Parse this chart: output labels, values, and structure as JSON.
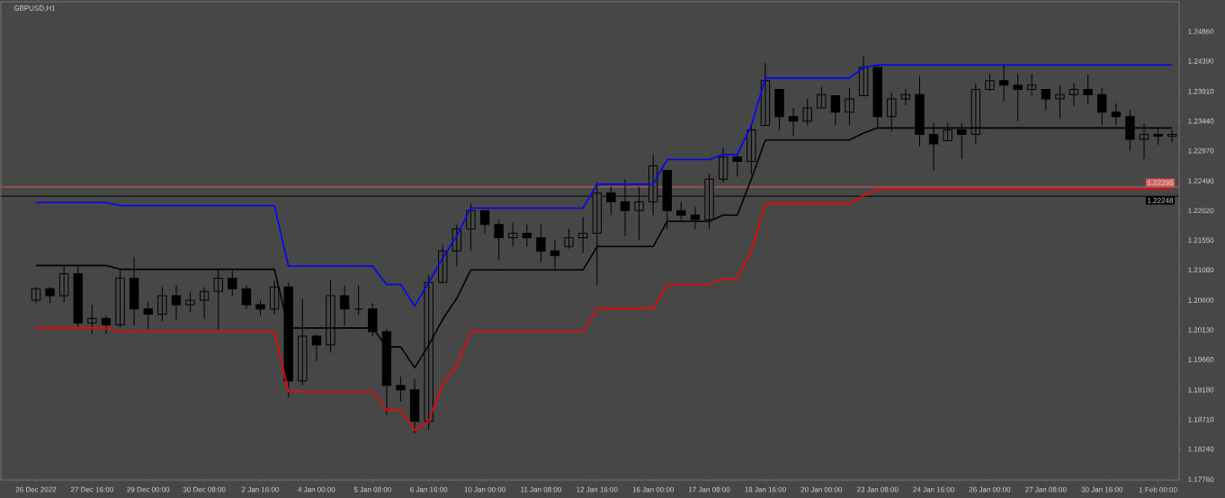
{
  "chart_data": {
    "type": "candlestick",
    "title": "GBPUSD,H1",
    "color": "#000000",
    "categories": [
      "26 Dec 2022",
      null,
      null,
      null,
      "27 Dec 16:00",
      null,
      null,
      null,
      "29 Dec 00:00",
      null,
      null,
      null,
      "30 Dec 08:00",
      null,
      null,
      null,
      "2 Jan 16:00",
      null,
      null,
      null,
      "4 Jan 00:00",
      null,
      null,
      null,
      "5 Jan 08:00",
      null,
      null,
      null,
      "6 Jan 16:00",
      null,
      null,
      null,
      "10 Jan 00:00",
      null,
      null,
      null,
      "11 Jan 08:00",
      null,
      null,
      null,
      "12 Jan 16:00",
      null,
      null,
      null,
      "16 Jan 00:00",
      null,
      null,
      null,
      "17 Jan 08:00",
      null,
      null,
      null,
      "18 Jan 16:00",
      null,
      null,
      null,
      "20 Jan 00:00",
      null,
      null,
      null,
      "23 Jan 08:00",
      null,
      null,
      null,
      "24 Jan 16:00",
      null,
      null,
      null,
      "26 Jan 00:00",
      null,
      null,
      null,
      "27 Jan 08:00",
      null,
      null,
      null,
      "30 Jan 16:00",
      null,
      null,
      null,
      "1 Feb 00:00",
      null
    ],
    "ohlc": [
      [
        1.206,
        1.2081,
        1.2055,
        1.2078
      ],
      [
        1.2078,
        1.2081,
        1.2055,
        1.2067
      ],
      [
        1.2067,
        1.2114,
        1.2057,
        1.2102
      ],
      [
        1.2102,
        1.2114,
        1.2014,
        1.2024
      ],
      [
        1.2024,
        1.2053,
        1.2007,
        1.2031
      ],
      [
        1.2031,
        1.2036,
        1.2007,
        1.2021
      ],
      [
        1.2021,
        1.2107,
        1.2017,
        1.2095
      ],
      [
        1.2095,
        1.2128,
        1.202,
        1.2046
      ],
      [
        1.2046,
        1.2057,
        1.2014,
        1.2038
      ],
      [
        1.2038,
        1.2081,
        1.2027,
        1.2067
      ],
      [
        1.2067,
        1.2084,
        1.2028,
        1.2053
      ],
      [
        1.2053,
        1.2074,
        1.2041,
        1.206
      ],
      [
        1.206,
        1.2081,
        1.2031,
        1.2074
      ],
      [
        1.2074,
        1.2109,
        1.2014,
        1.2095
      ],
      [
        1.2095,
        1.2107,
        1.2067,
        1.2078
      ],
      [
        1.2078,
        1.2084,
        1.2046,
        1.2053
      ],
      [
        1.2053,
        1.206,
        1.2036,
        1.2046
      ],
      [
        1.2046,
        1.2091,
        1.2038,
        1.2081
      ],
      [
        1.2081,
        1.2088,
        1.1906,
        1.1932
      ],
      [
        1.1932,
        1.2062,
        1.1925,
        1.2003
      ],
      [
        1.2003,
        1.2006,
        1.1963,
        1.1989
      ],
      [
        1.1989,
        1.2092,
        1.1977,
        1.2067
      ],
      [
        1.2067,
        1.2084,
        1.202,
        1.2046
      ],
      [
        1.2046,
        1.2084,
        1.2036,
        1.2046
      ],
      [
        1.2046,
        1.2055,
        1.2003,
        1.201
      ],
      [
        1.201,
        1.2014,
        1.1878,
        1.1925
      ],
      [
        1.1925,
        1.1939,
        1.1899,
        1.1918
      ],
      [
        1.1918,
        1.1935,
        1.1849,
        1.1868
      ],
      [
        1.1868,
        1.21,
        1.1854,
        1.2088
      ],
      [
        1.2088,
        1.2148,
        1.2088,
        1.2138
      ],
      [
        1.2138,
        1.218,
        1.2114,
        1.2173
      ],
      [
        1.2173,
        1.2213,
        1.2138,
        1.2202
      ],
      [
        1.2202,
        1.2202,
        1.2166,
        1.218
      ],
      [
        1.218,
        1.2188,
        1.2124,
        1.2159
      ],
      [
        1.2159,
        1.2183,
        1.2145,
        1.2166
      ],
      [
        1.2166,
        1.218,
        1.2145,
        1.2159
      ],
      [
        1.2159,
        1.218,
        1.2121,
        1.2138
      ],
      [
        1.2138,
        1.2156,
        1.2109,
        1.2131
      ],
      [
        1.2145,
        1.2173,
        1.2142,
        1.2159
      ],
      [
        1.2159,
        1.2192,
        1.2135,
        1.2166
      ],
      [
        1.2166,
        1.2247,
        1.2084,
        1.223
      ],
      [
        1.223,
        1.224,
        1.2195,
        1.2216
      ],
      [
        1.2216,
        1.2252,
        1.2162,
        1.2202
      ],
      [
        1.2202,
        1.224,
        1.2155,
        1.2216
      ],
      [
        1.2216,
        1.229,
        1.2195,
        1.2273
      ],
      [
        1.2266,
        1.2266,
        1.2173,
        1.2202
      ],
      [
        1.2202,
        1.2216,
        1.2188,
        1.2195
      ],
      [
        1.2195,
        1.2209,
        1.2173,
        1.2188
      ],
      [
        1.2188,
        1.2261,
        1.2173,
        1.2252
      ],
      [
        1.2252,
        1.2301,
        1.2247,
        1.2287
      ],
      [
        1.2287,
        1.2291,
        1.2256,
        1.228
      ],
      [
        1.228,
        1.2337,
        1.2259,
        1.233
      ],
      [
        1.2337,
        1.2436,
        1.2337,
        1.2408
      ],
      [
        1.2394,
        1.2394,
        1.233,
        1.2351
      ],
      [
        1.2351,
        1.2365,
        1.232,
        1.2344
      ],
      [
        1.2344,
        1.2379,
        1.2337,
        1.2365
      ],
      [
        1.2365,
        1.2398,
        1.2365,
        1.2386
      ],
      [
        1.2384,
        1.2384,
        1.2337,
        1.2358
      ],
      [
        1.2358,
        1.2396,
        1.2337,
        1.2379
      ],
      [
        1.2384,
        1.2448,
        1.2384,
        1.2429
      ],
      [
        1.2429,
        1.2432,
        1.2332,
        1.2351
      ],
      [
        1.2351,
        1.2389,
        1.2327,
        1.2379
      ],
      [
        1.2379,
        1.2394,
        1.2369,
        1.2386
      ],
      [
        1.2386,
        1.2415,
        1.2304,
        1.2323
      ],
      [
        1.2323,
        1.2341,
        1.2266,
        1.2308
      ],
      [
        1.2313,
        1.2341,
        1.2313,
        1.233
      ],
      [
        1.233,
        1.2341,
        1.2284,
        1.2323
      ],
      [
        1.2323,
        1.2404,
        1.2308,
        1.2394
      ],
      [
        1.2394,
        1.2419,
        1.2391,
        1.2408
      ],
      [
        1.2408,
        1.2432,
        1.2375,
        1.2401
      ],
      [
        1.2401,
        1.2419,
        1.2344,
        1.2394
      ],
      [
        1.2394,
        1.2419,
        1.2384,
        1.2401
      ],
      [
        1.2394,
        1.2394,
        1.2361,
        1.2379
      ],
      [
        1.2379,
        1.2401,
        1.2348,
        1.2386
      ],
      [
        1.2386,
        1.2404,
        1.2368,
        1.2394
      ],
      [
        1.2394,
        1.2418,
        1.2372,
        1.2386
      ],
      [
        1.2386,
        1.2396,
        1.2337,
        1.2358
      ],
      [
        1.2358,
        1.2372,
        1.2337,
        1.2351
      ],
      [
        1.2351,
        1.2362,
        1.2297,
        1.2315
      ],
      [
        1.2315,
        1.234,
        1.2284,
        1.2323
      ],
      [
        1.2323,
        1.2332,
        1.2306,
        1.232
      ],
      [
        1.232,
        1.233,
        1.2311,
        1.2323
      ]
    ],
    "series": [
      {
        "type": "line",
        "color": "#0000ff",
        "values": [
          1.2215,
          1.2215,
          1.2215,
          1.2215,
          1.2215,
          1.2215,
          1.221,
          1.221,
          1.221,
          1.221,
          1.221,
          1.221,
          1.221,
          1.221,
          1.221,
          1.221,
          1.221,
          1.221,
          1.2114,
          1.2114,
          1.2114,
          1.2114,
          1.2114,
          1.2114,
          1.2114,
          1.2085,
          1.2085,
          1.2051,
          1.2088,
          1.2127,
          1.2162,
          1.2206,
          1.2206,
          1.2206,
          1.2206,
          1.2206,
          1.2206,
          1.2206,
          1.2206,
          1.2206,
          1.2244,
          1.2244,
          1.2244,
          1.2244,
          1.2244,
          1.2283,
          1.2283,
          1.2283,
          1.2283,
          1.2291,
          1.2291,
          1.2337,
          1.2412,
          1.2412,
          1.2412,
          1.2412,
          1.2412,
          1.2412,
          1.2412,
          1.2429,
          1.2433,
          1.2433,
          1.2433,
          1.2433,
          1.2433,
          1.2433,
          1.2433,
          1.2433,
          1.2433,
          1.2433,
          1.2433,
          1.2433,
          1.2433,
          1.2433,
          1.2433,
          1.2433,
          1.2433,
          1.2433,
          1.2433,
          1.2433,
          1.2433,
          1.2433
        ]
      },
      {
        "type": "line",
        "color": "#000000",
        "values": [
          1.2115,
          1.2115,
          1.2115,
          1.2115,
          1.2115,
          1.2115,
          1.2109,
          1.2109,
          1.2109,
          1.2109,
          1.2109,
          1.2109,
          1.2109,
          1.2109,
          1.2109,
          1.2109,
          1.2109,
          1.2109,
          1.2016,
          1.2016,
          1.2016,
          1.2016,
          1.2016,
          1.2016,
          1.2016,
          1.1986,
          1.1986,
          1.1953,
          1.1989,
          1.203,
          1.2063,
          1.2108,
          1.2108,
          1.2108,
          1.2108,
          1.2108,
          1.2108,
          1.2108,
          1.2108,
          1.2108,
          1.2145,
          1.2145,
          1.2145,
          1.2145,
          1.2145,
          1.2185,
          1.2185,
          1.2185,
          1.2185,
          1.2195,
          1.2195,
          1.2252,
          1.2314,
          1.2314,
          1.2314,
          1.2314,
          1.2314,
          1.2314,
          1.2314,
          1.2325,
          1.2333,
          1.2333,
          1.2333,
          1.2333,
          1.2333,
          1.2333,
          1.2333,
          1.2333,
          1.2333,
          1.2333,
          1.2333,
          1.2333,
          1.2333,
          1.2333,
          1.2333,
          1.2333,
          1.2333,
          1.2333,
          1.2333,
          1.2333,
          1.2333,
          1.2333
        ]
      },
      {
        "type": "line",
        "color": "#ff0000",
        "values": [
          1.2016,
          1.2016,
          1.2016,
          1.2016,
          1.2016,
          1.2016,
          1.201,
          1.201,
          1.201,
          1.201,
          1.201,
          1.201,
          1.201,
          1.201,
          1.201,
          1.201,
          1.201,
          1.201,
          1.1915,
          1.1915,
          1.1915,
          1.1915,
          1.1915,
          1.1915,
          1.1915,
          1.1886,
          1.1886,
          1.1854,
          1.1868,
          1.1928,
          1.1956,
          1.201,
          1.201,
          1.201,
          1.201,
          1.201,
          1.201,
          1.201,
          1.201,
          1.201,
          1.2047,
          1.2047,
          1.2047,
          1.2047,
          1.2047,
          1.2085,
          1.2085,
          1.2085,
          1.2085,
          1.2094,
          1.2094,
          1.2138,
          1.2213,
          1.2213,
          1.2213,
          1.2213,
          1.2213,
          1.2213,
          1.2213,
          1.2226,
          1.2236,
          1.2236,
          1.2236,
          1.2236,
          1.2236,
          1.2236,
          1.2236,
          1.2236,
          1.2236,
          1.2236,
          1.2236,
          1.2236,
          1.2236,
          1.2236,
          1.2236,
          1.2236,
          1.2236,
          1.2236,
          1.2236,
          1.2236,
          1.2236,
          1.2236
        ]
      }
    ],
    "ref_lines": [
      {
        "axis": "y",
        "value": 1.22395,
        "label": "1.22395",
        "color": "#d9605a"
      },
      {
        "axis": "y",
        "value": 1.22248,
        "label": "1.22248",
        "color": "#000000"
      }
    ],
    "ylim": [
      1.1775,
      1.2533
    ],
    "yticks": [
      {
        "value": 1.1776,
        "label": "1.17760"
      },
      {
        "value": 1.1824,
        "label": "1.18240"
      },
      {
        "value": 1.1871,
        "label": "1.18710"
      },
      {
        "value": 1.1918,
        "label": "1.19180"
      },
      {
        "value": 1.1966,
        "label": "1.19660"
      },
      {
        "value": 1.2013,
        "label": "1.20130"
      },
      {
        "value": 1.206,
        "label": "1.20600"
      },
      {
        "value": 1.2108,
        "label": "1.21080"
      },
      {
        "value": 1.2155,
        "label": "1.21550"
      },
      {
        "value": 1.2202,
        "label": "1.22020"
      },
      {
        "value": 1.2249,
        "label": "1.22490"
      },
      {
        "value": 1.2297,
        "label": "1.22970"
      },
      {
        "value": 1.2344,
        "label": "1.23440"
      },
      {
        "value": 1.2391,
        "label": "1.23910"
      },
      {
        "value": 1.2439,
        "label": "1.24390"
      },
      {
        "value": 1.2486,
        "label": "1.24860"
      }
    ],
    "grid": false
  }
}
